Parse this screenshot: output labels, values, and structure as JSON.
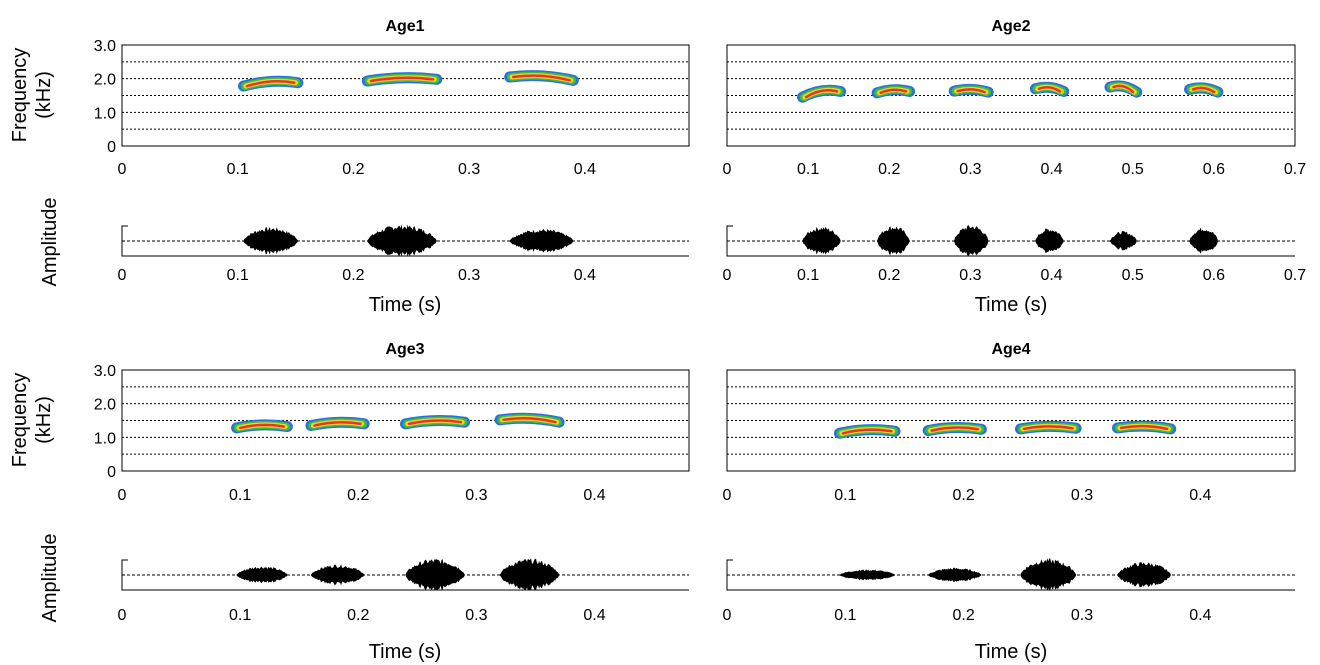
{
  "chart_data": {
    "type": "spectrogram",
    "ylabel_spectrogram": [
      "Frequency",
      "(kHz)"
    ],
    "ylabel_amplitude": "Amplitude",
    "xlabel": "Time (s)",
    "freq_ticks": [
      "0",
      "1.0",
      "2.0",
      "3.0"
    ],
    "freq_range": [
      0,
      3.0
    ],
    "grid": "horizontal dotted lines every 0.5 kHz",
    "colors": {
      "outer": "#2c6fe0",
      "middle": "#38c03a",
      "inner": "#f2d22e",
      "core": "#e8342a",
      "waveform": "#000000"
    },
    "panels": [
      {
        "title": "Age1",
        "xlim": [
          0,
          0.49
        ],
        "xticks": [
          "0",
          "0.1",
          "0.2",
          "0.3",
          "0.4"
        ],
        "notes": [
          {
            "t0": 0.105,
            "t1": 0.152,
            "f0": 1.78,
            "f1": 1.88,
            "amp": 0.85
          },
          {
            "t0": 0.212,
            "t1": 0.272,
            "f0": 1.93,
            "f1": 1.98,
            "amp": 1.0
          },
          {
            "t0": 0.335,
            "t1": 0.39,
            "f0": 2.05,
            "f1": 1.95,
            "amp": 0.75
          }
        ]
      },
      {
        "title": "Age2",
        "xlim": [
          0,
          0.7
        ],
        "xticks": [
          "0",
          "0.1",
          "0.2",
          "0.3",
          "0.4",
          "0.5",
          "0.6",
          "0.7"
        ],
        "notes": [
          {
            "t0": 0.093,
            "t1": 0.14,
            "f0": 1.45,
            "f1": 1.62,
            "amp": 0.9
          },
          {
            "t0": 0.185,
            "t1": 0.225,
            "f0": 1.58,
            "f1": 1.62,
            "amp": 0.95
          },
          {
            "t0": 0.28,
            "t1": 0.322,
            "f0": 1.63,
            "f1": 1.6,
            "amp": 1.0
          },
          {
            "t0": 0.38,
            "t1": 0.415,
            "f0": 1.7,
            "f1": 1.62,
            "amp": 0.8
          },
          {
            "t0": 0.472,
            "t1": 0.505,
            "f0": 1.75,
            "f1": 1.6,
            "amp": 0.6
          },
          {
            "t0": 0.57,
            "t1": 0.605,
            "f0": 1.68,
            "f1": 1.6,
            "amp": 0.85
          }
        ]
      },
      {
        "title": "Age3",
        "xlim": [
          0,
          0.48
        ],
        "xticks": [
          "0",
          "0.1",
          "0.2",
          "0.3",
          "0.4"
        ],
        "notes": [
          {
            "t0": 0.097,
            "t1": 0.14,
            "f0": 1.28,
            "f1": 1.32,
            "amp": 0.55
          },
          {
            "t0": 0.16,
            "t1": 0.205,
            "f0": 1.35,
            "f1": 1.4,
            "amp": 0.65
          },
          {
            "t0": 0.24,
            "t1": 0.29,
            "f0": 1.4,
            "f1": 1.45,
            "amp": 1.0
          },
          {
            "t0": 0.32,
            "t1": 0.37,
            "f0": 1.52,
            "f1": 1.45,
            "amp": 1.0
          }
        ]
      },
      {
        "title": "Age4",
        "xlim": [
          0,
          0.48
        ],
        "xticks": [
          "0",
          "0.1",
          "0.2",
          "0.3",
          "0.4"
        ],
        "notes": [
          {
            "t0": 0.095,
            "t1": 0.142,
            "f0": 1.12,
            "f1": 1.18,
            "amp": 0.35
          },
          {
            "t0": 0.17,
            "t1": 0.215,
            "f0": 1.2,
            "f1": 1.24,
            "amp": 0.45
          },
          {
            "t0": 0.248,
            "t1": 0.295,
            "f0": 1.25,
            "f1": 1.27,
            "amp": 1.0
          },
          {
            "t0": 0.33,
            "t1": 0.375,
            "f0": 1.28,
            "f1": 1.25,
            "amp": 0.8
          }
        ]
      }
    ]
  }
}
